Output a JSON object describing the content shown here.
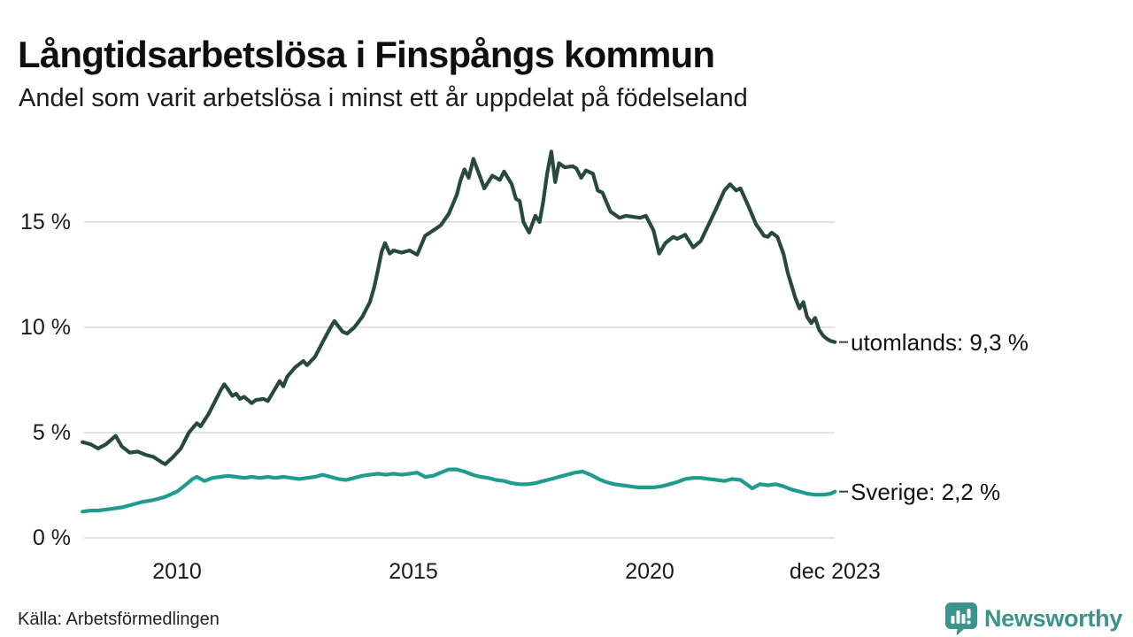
{
  "header": {
    "title": "Långtidsarbetslösa i Finspångs kommun",
    "subtitle": "Andel som varit arbetslösa i minst ett år uppdelat på födelseland"
  },
  "footer": {
    "source": "Källa: Arbetsförmedlingen",
    "brand_name": "Newsworthy",
    "brand_color": "#3B948B"
  },
  "chart_data": {
    "type": "line",
    "title": "Långtidsarbetslösa i Finspångs kommun",
    "subtitle": "Andel som varit arbetslösa i minst ett år uppdelat på födelseland",
    "source": "Källa: Arbetsförmedlingen",
    "unit": "%",
    "x_domain": [
      2008.0,
      2023.92
    ],
    "y_domain": [
      0,
      19
    ],
    "grid": "horizontal",
    "grid_color": "#E3E3E3",
    "legend_position": "end-of-line-labels",
    "yticks": [
      {
        "value": 15,
        "label": "15 %"
      },
      {
        "value": 10,
        "label": "10 %"
      },
      {
        "value": 5,
        "label": "5 %"
      },
      {
        "value": 0,
        "label": "0 %"
      }
    ],
    "xticks": [
      {
        "value": 2010,
        "label": "2010"
      },
      {
        "value": 2015,
        "label": "2015"
      },
      {
        "value": 2020,
        "label": "2020"
      },
      {
        "value": 2023.92,
        "label": "dec 2023"
      }
    ],
    "series": [
      {
        "name": "utomlands",
        "color": "#27493F",
        "end_label": "utomlands: 9,3 %",
        "end_value": 9.3,
        "points": [
          [
            2008.0,
            4.55
          ],
          [
            2008.17,
            4.45
          ],
          [
            2008.33,
            4.25
          ],
          [
            2008.5,
            4.45
          ],
          [
            2008.7,
            4.85
          ],
          [
            2008.83,
            4.35
          ],
          [
            2009.0,
            4.05
          ],
          [
            2009.17,
            4.1
          ],
          [
            2009.33,
            3.95
          ],
          [
            2009.5,
            3.85
          ],
          [
            2009.67,
            3.6
          ],
          [
            2009.75,
            3.5
          ],
          [
            2009.92,
            3.85
          ],
          [
            2010.08,
            4.25
          ],
          [
            2010.25,
            5.0
          ],
          [
            2010.42,
            5.45
          ],
          [
            2010.5,
            5.3
          ],
          [
            2010.67,
            5.9
          ],
          [
            2010.83,
            6.6
          ],
          [
            2010.92,
            7.0
          ],
          [
            2011.0,
            7.3
          ],
          [
            2011.08,
            7.05
          ],
          [
            2011.17,
            6.75
          ],
          [
            2011.25,
            6.85
          ],
          [
            2011.33,
            6.6
          ],
          [
            2011.42,
            6.7
          ],
          [
            2011.58,
            6.4
          ],
          [
            2011.67,
            6.55
          ],
          [
            2011.83,
            6.6
          ],
          [
            2011.92,
            6.5
          ],
          [
            2012.0,
            6.8
          ],
          [
            2012.17,
            7.45
          ],
          [
            2012.25,
            7.2
          ],
          [
            2012.33,
            7.65
          ],
          [
            2012.5,
            8.1
          ],
          [
            2012.67,
            8.4
          ],
          [
            2012.75,
            8.2
          ],
          [
            2012.92,
            8.6
          ],
          [
            2013.08,
            9.3
          ],
          [
            2013.25,
            10.0
          ],
          [
            2013.33,
            10.3
          ],
          [
            2013.5,
            9.8
          ],
          [
            2013.6,
            9.7
          ],
          [
            2013.75,
            10.0
          ],
          [
            2013.92,
            10.5
          ],
          [
            2014.08,
            11.2
          ],
          [
            2014.17,
            11.9
          ],
          [
            2014.25,
            12.7
          ],
          [
            2014.33,
            13.6
          ],
          [
            2014.4,
            14.0
          ],
          [
            2014.5,
            13.5
          ],
          [
            2014.58,
            13.65
          ],
          [
            2014.75,
            13.55
          ],
          [
            2014.92,
            13.65
          ],
          [
            2015.08,
            13.45
          ],
          [
            2015.25,
            14.35
          ],
          [
            2015.42,
            14.6
          ],
          [
            2015.58,
            14.85
          ],
          [
            2015.75,
            15.4
          ],
          [
            2015.92,
            16.3
          ],
          [
            2016.0,
            17.0
          ],
          [
            2016.08,
            17.5
          ],
          [
            2016.17,
            17.1
          ],
          [
            2016.27,
            18.0
          ],
          [
            2016.42,
            17.1
          ],
          [
            2016.5,
            16.6
          ],
          [
            2016.67,
            17.2
          ],
          [
            2016.83,
            17.0
          ],
          [
            2016.92,
            17.4
          ],
          [
            2017.08,
            16.8
          ],
          [
            2017.17,
            16.1
          ],
          [
            2017.25,
            16.0
          ],
          [
            2017.33,
            15.0
          ],
          [
            2017.45,
            14.5
          ],
          [
            2017.58,
            15.3
          ],
          [
            2017.67,
            15.0
          ],
          [
            2017.75,
            16.0
          ],
          [
            2017.83,
            17.3
          ],
          [
            2017.92,
            18.35
          ],
          [
            2018.0,
            16.9
          ],
          [
            2018.08,
            17.8
          ],
          [
            2018.2,
            17.6
          ],
          [
            2018.37,
            17.65
          ],
          [
            2018.45,
            17.55
          ],
          [
            2018.55,
            17.1
          ],
          [
            2018.65,
            17.45
          ],
          [
            2018.8,
            17.3
          ],
          [
            2018.9,
            16.5
          ],
          [
            2019.0,
            16.4
          ],
          [
            2019.17,
            15.5
          ],
          [
            2019.36,
            15.2
          ],
          [
            2019.5,
            15.3
          ],
          [
            2019.65,
            15.25
          ],
          [
            2019.8,
            15.2
          ],
          [
            2019.92,
            15.3
          ],
          [
            2020.08,
            14.6
          ],
          [
            2020.2,
            13.5
          ],
          [
            2020.33,
            14.0
          ],
          [
            2020.5,
            14.3
          ],
          [
            2020.58,
            14.2
          ],
          [
            2020.75,
            14.4
          ],
          [
            2020.92,
            13.8
          ],
          [
            2021.08,
            14.1
          ],
          [
            2021.25,
            14.9
          ],
          [
            2021.42,
            15.7
          ],
          [
            2021.58,
            16.5
          ],
          [
            2021.7,
            16.8
          ],
          [
            2021.83,
            16.5
          ],
          [
            2021.92,
            16.6
          ],
          [
            2022.08,
            15.8
          ],
          [
            2022.25,
            14.9
          ],
          [
            2022.42,
            14.35
          ],
          [
            2022.5,
            14.3
          ],
          [
            2022.58,
            14.5
          ],
          [
            2022.7,
            14.3
          ],
          [
            2022.83,
            13.5
          ],
          [
            2022.92,
            12.6
          ],
          [
            2023.0,
            12.0
          ],
          [
            2023.08,
            11.4
          ],
          [
            2023.17,
            10.9
          ],
          [
            2023.25,
            11.2
          ],
          [
            2023.33,
            10.5
          ],
          [
            2023.42,
            10.2
          ],
          [
            2023.5,
            10.45
          ],
          [
            2023.58,
            9.9
          ],
          [
            2023.67,
            9.6
          ],
          [
            2023.75,
            9.45
          ],
          [
            2023.83,
            9.35
          ],
          [
            2023.92,
            9.3
          ]
        ]
      },
      {
        "name": "Sverige",
        "color": "#1F9C8D",
        "end_label": "Sverige: 2,2 %",
        "end_value": 2.2,
        "points": [
          [
            2008.0,
            1.25
          ],
          [
            2008.17,
            1.3
          ],
          [
            2008.33,
            1.3
          ],
          [
            2008.5,
            1.35
          ],
          [
            2008.67,
            1.4
          ],
          [
            2008.83,
            1.45
          ],
          [
            2009.0,
            1.55
          ],
          [
            2009.25,
            1.7
          ],
          [
            2009.5,
            1.8
          ],
          [
            2009.75,
            1.95
          ],
          [
            2010.0,
            2.2
          ],
          [
            2010.17,
            2.5
          ],
          [
            2010.33,
            2.8
          ],
          [
            2010.42,
            2.9
          ],
          [
            2010.58,
            2.7
          ],
          [
            2010.75,
            2.85
          ],
          [
            2010.92,
            2.9
          ],
          [
            2011.08,
            2.95
          ],
          [
            2011.25,
            2.9
          ],
          [
            2011.42,
            2.85
          ],
          [
            2011.58,
            2.9
          ],
          [
            2011.75,
            2.85
          ],
          [
            2011.92,
            2.9
          ],
          [
            2012.08,
            2.85
          ],
          [
            2012.25,
            2.9
          ],
          [
            2012.42,
            2.85
          ],
          [
            2012.58,
            2.8
          ],
          [
            2012.75,
            2.85
          ],
          [
            2012.92,
            2.9
          ],
          [
            2013.08,
            3.0
          ],
          [
            2013.25,
            2.9
          ],
          [
            2013.42,
            2.8
          ],
          [
            2013.58,
            2.75
          ],
          [
            2013.75,
            2.85
          ],
          [
            2013.92,
            2.95
          ],
          [
            2014.08,
            3.0
          ],
          [
            2014.25,
            3.05
          ],
          [
            2014.42,
            3.0
          ],
          [
            2014.58,
            3.05
          ],
          [
            2014.75,
            3.0
          ],
          [
            2014.92,
            3.05
          ],
          [
            2015.08,
            3.1
          ],
          [
            2015.25,
            2.9
          ],
          [
            2015.42,
            2.95
          ],
          [
            2015.58,
            3.1
          ],
          [
            2015.75,
            3.25
          ],
          [
            2015.92,
            3.25
          ],
          [
            2016.08,
            3.15
          ],
          [
            2016.25,
            3.0
          ],
          [
            2016.42,
            2.9
          ],
          [
            2016.58,
            2.85
          ],
          [
            2016.75,
            2.75
          ],
          [
            2016.92,
            2.7
          ],
          [
            2017.08,
            2.6
          ],
          [
            2017.25,
            2.55
          ],
          [
            2017.42,
            2.55
          ],
          [
            2017.58,
            2.6
          ],
          [
            2017.75,
            2.7
          ],
          [
            2017.92,
            2.8
          ],
          [
            2018.08,
            2.9
          ],
          [
            2018.25,
            3.0
          ],
          [
            2018.42,
            3.1
          ],
          [
            2018.58,
            3.15
          ],
          [
            2018.75,
            3.0
          ],
          [
            2018.92,
            2.8
          ],
          [
            2019.08,
            2.65
          ],
          [
            2019.25,
            2.55
          ],
          [
            2019.42,
            2.5
          ],
          [
            2019.58,
            2.45
          ],
          [
            2019.75,
            2.4
          ],
          [
            2019.92,
            2.4
          ],
          [
            2020.08,
            2.4
          ],
          [
            2020.25,
            2.45
          ],
          [
            2020.42,
            2.55
          ],
          [
            2020.58,
            2.65
          ],
          [
            2020.75,
            2.8
          ],
          [
            2020.92,
            2.85
          ],
          [
            2021.08,
            2.85
          ],
          [
            2021.25,
            2.8
          ],
          [
            2021.42,
            2.75
          ],
          [
            2021.58,
            2.7
          ],
          [
            2021.75,
            2.8
          ],
          [
            2021.92,
            2.75
          ],
          [
            2022.08,
            2.5
          ],
          [
            2022.17,
            2.35
          ],
          [
            2022.33,
            2.55
          ],
          [
            2022.5,
            2.5
          ],
          [
            2022.67,
            2.55
          ],
          [
            2022.83,
            2.45
          ],
          [
            2023.0,
            2.3
          ],
          [
            2023.17,
            2.2
          ],
          [
            2023.33,
            2.1
          ],
          [
            2023.5,
            2.05
          ],
          [
            2023.67,
            2.05
          ],
          [
            2023.83,
            2.1
          ],
          [
            2023.92,
            2.2
          ]
        ]
      }
    ]
  }
}
